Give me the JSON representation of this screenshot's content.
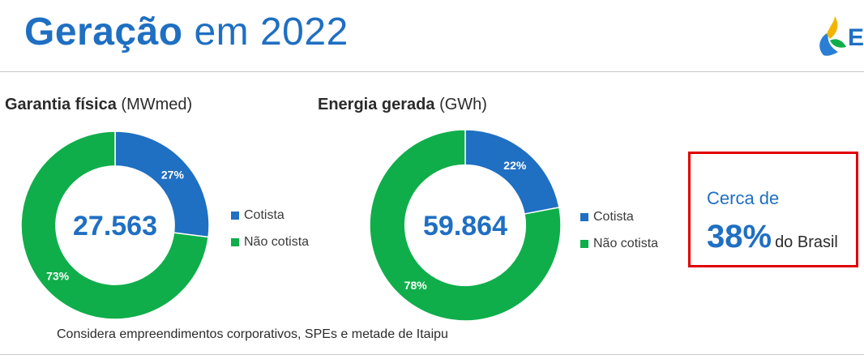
{
  "header": {
    "title_bold": "Geração",
    "title_rest": " em 2022",
    "logo_letter": "E"
  },
  "colors": {
    "cotista": "#1f6fc2",
    "nao_cotista": "#0fae4a",
    "accent": "#1f6fc2",
    "highlight_border": "#e00000"
  },
  "chart_data": [
    {
      "type": "pie",
      "title": "Garantia física",
      "unit": "(MWmed)",
      "center_value": "27.563",
      "categories": [
        "Cotista",
        "Não cotista"
      ],
      "values": [
        27,
        73
      ],
      "labels": [
        "27%",
        "73%"
      ],
      "legend_position": "right"
    },
    {
      "type": "pie",
      "title": "Energia gerada",
      "unit": "(GWh)",
      "center_value": "59.864",
      "categories": [
        "Cotista",
        "Não cotista"
      ],
      "values": [
        22,
        78
      ],
      "labels": [
        "22%",
        "78%"
      ],
      "legend_position": "right"
    }
  ],
  "footnote": "Considera empreendimentos corporativos, SPEs e metade de Itaipu",
  "callout": {
    "line1": "Cerca de",
    "percent": "38%",
    "rest": "do Brasil"
  }
}
